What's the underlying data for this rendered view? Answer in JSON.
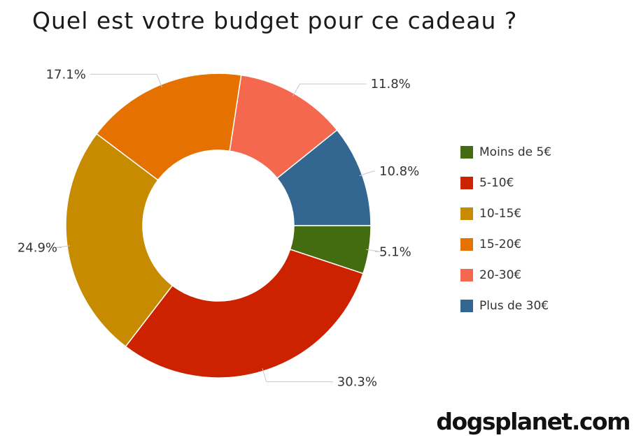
{
  "chart_data": {
    "type": "pie",
    "title": "Quel est votre budget pour ce cadeau ?",
    "categories": [
      "Moins de 5€",
      "5-10€",
      "10-15€",
      "15-20€",
      "20-30€",
      "Plus de 30€"
    ],
    "values": [
      5.1,
      30.3,
      24.9,
      17.1,
      11.8,
      10.8
    ],
    "value_labels": [
      "5.1%",
      "30.3%",
      "24.9%",
      "17.1%",
      "11.8%",
      "10.8%"
    ],
    "colors": [
      "#436c11",
      "#cc2200",
      "#c78b00",
      "#e57100",
      "#f4694e",
      "#336791"
    ],
    "donut": true,
    "legend_position": "right"
  },
  "brand": {
    "logo_text": "dogsplanet.com"
  }
}
